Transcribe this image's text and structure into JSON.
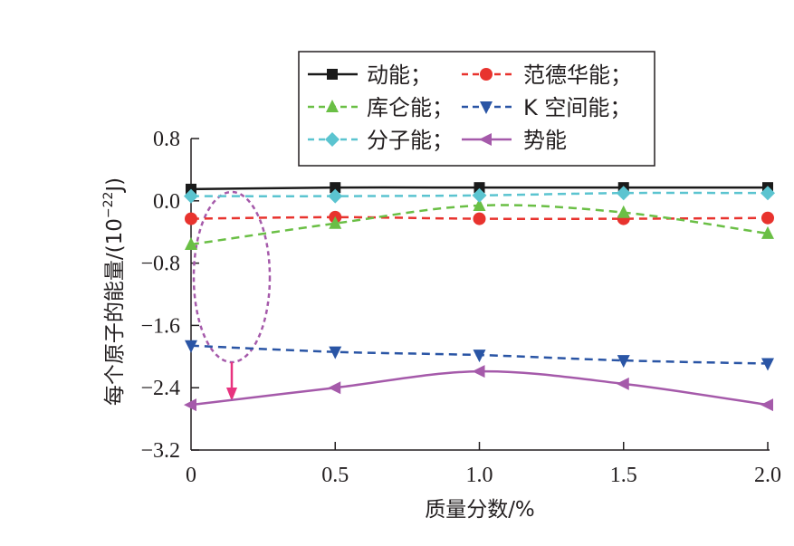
{
  "chart_data": {
    "type": "line",
    "title": "",
    "xlabel": "质量分数/%",
    "ylabel": "每个原子的能量/(10",
    "ylabel_exp": "−22",
    "ylabel_unit": "J)",
    "x": [
      0,
      0.5,
      1.0,
      1.5,
      2.0
    ],
    "xlim": [
      0,
      2.0
    ],
    "ylim": [
      -3.2,
      0.8
    ],
    "xticks": [
      0,
      0.5,
      1.0,
      1.5,
      2.0
    ],
    "xtick_labels": [
      "0",
      "0.5",
      "1.0",
      "1.5",
      "2.0"
    ],
    "yticks": [
      0.8,
      0.0,
      -0.8,
      -1.6,
      -2.4,
      -3.2
    ],
    "ytick_labels": [
      "0.8",
      "0.0",
      "−0.8",
      "−1.6",
      "−2.4",
      "−3.2"
    ],
    "grid": false,
    "legend_position": "top",
    "series": [
      {
        "name": "动能；",
        "color": "#1a1a1a",
        "dash": "solid",
        "marker": "square",
        "values": [
          0.15,
          0.17,
          0.17,
          0.17,
          0.17
        ]
      },
      {
        "name": "范德华能；",
        "color": "#e8332e",
        "dash": "dashed",
        "marker": "circle",
        "values": [
          -0.23,
          -0.21,
          -0.23,
          -0.23,
          -0.22
        ]
      },
      {
        "name": "库仑能；",
        "color": "#6abf45",
        "dash": "dashed",
        "marker": "triangle-up",
        "values": [
          -0.56,
          -0.29,
          -0.06,
          -0.15,
          -0.42
        ]
      },
      {
        "name": "K 空间能；",
        "color": "#2a55a5",
        "dash": "dashed",
        "marker": "triangle-down",
        "values": [
          -1.86,
          -1.94,
          -1.98,
          -2.05,
          -2.09
        ]
      },
      {
        "name": "分子能；",
        "color": "#5bc4d0",
        "dash": "dashed",
        "marker": "diamond",
        "values": [
          0.06,
          0.06,
          0.07,
          0.1,
          0.1
        ]
      },
      {
        "name": "势能",
        "color": "#a55aaa",
        "dash": "solid",
        "marker": "triangle-left",
        "values": [
          -2.62,
          -2.4,
          -2.19,
          -2.35,
          -2.62
        ]
      }
    ],
    "annotations": [
      {
        "type": "dashed-ellipse",
        "color": "#a55aaa",
        "note": "encircles series at x=0"
      },
      {
        "type": "arrow",
        "color": "#e8337f",
        "points_to": "势能"
      }
    ]
  }
}
